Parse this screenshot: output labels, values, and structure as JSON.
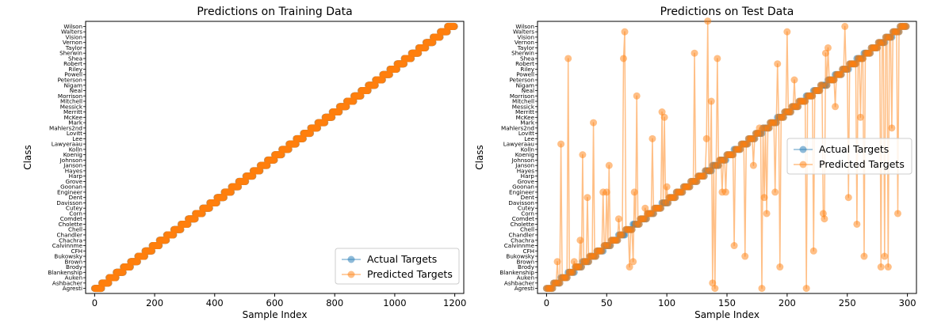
{
  "chart_data": [
    {
      "type": "line",
      "title": "Predictions on Training Data",
      "xlabel": "Sample Index",
      "ylabel": "Class",
      "xlim": [
        -30,
        1230
      ],
      "x_ticks": [
        0,
        200,
        400,
        600,
        800,
        1000,
        1200
      ],
      "grid": false,
      "legend_position": "bottom-right",
      "categories": [
        "Agresti",
        "Ashbacher",
        "Auken",
        "Blankenship",
        "Brody",
        "Brown",
        "Bukowsky",
        "CFH",
        "Calvinnme",
        "Chachra",
        "Chandler",
        "Chell",
        "Cholette",
        "Comdet",
        "Corn",
        "Cutey",
        "Davisson",
        "Dent",
        "Engineer",
        "Goonan",
        "Grove",
        "Harp",
        "Hayes",
        "Janson",
        "Johnson",
        "Koenig",
        "Kolln",
        "Lawyeraau",
        "Lee",
        "Lovitt",
        "Mahlers2nd",
        "Mark",
        "McKee",
        "Merritt",
        "Messick",
        "Mitchell",
        "Morrison",
        "Neal",
        "Nigam",
        "Peterson",
        "Powell",
        "Riley",
        "Robert",
        "Shea",
        "Sherwin",
        "Taylor",
        "Vernon",
        "Vision",
        "Walters",
        "Wilson"
      ],
      "series": [
        {
          "name": "Actual Targets",
          "color": "#1f77b4",
          "style": "staircase",
          "x_start": 0,
          "x_end": 1199,
          "samples_per_class": 24
        },
        {
          "name": "Predicted Targets",
          "color": "#ff7f0e",
          "style": "staircase",
          "x_start": 0,
          "x_end": 1199,
          "samples_per_class": 24
        }
      ]
    },
    {
      "type": "line",
      "title": "Predictions on Test Data",
      "xlabel": "Sample Index",
      "ylabel": "Class",
      "xlim": [
        -7.5,
        307.5
      ],
      "x_ticks": [
        0,
        50,
        100,
        150,
        200,
        250,
        300
      ],
      "grid": false,
      "legend_position": "center-right",
      "series": [
        {
          "name": "Actual Targets",
          "color": "#1f77b4",
          "style": "staircase",
          "x_start": 0,
          "x_end": 299,
          "samples_per_class": 6
        },
        {
          "name": "Predicted Targets",
          "color": "#ff7f0e",
          "style": "staircase_with_misclassifications",
          "x_start": 0,
          "x_end": 299,
          "samples_per_class": 6,
          "misclassified_points": [
            [
              9,
              5
            ],
            [
              12,
              27
            ],
            [
              18,
              43
            ],
            [
              23,
              5
            ],
            [
              28,
              9
            ],
            [
              30,
              25
            ],
            [
              34,
              17
            ],
            [
              39,
              31
            ],
            [
              47,
              18
            ],
            [
              50,
              18
            ],
            [
              52,
              23
            ],
            [
              60,
              13
            ],
            [
              64,
              43
            ],
            [
              65,
              48
            ],
            [
              69,
              4
            ],
            [
              72,
              5
            ],
            [
              73,
              18
            ],
            [
              75,
              36
            ],
            [
              82,
              15
            ],
            [
              84,
              14
            ],
            [
              88,
              28
            ],
            [
              96,
              33
            ],
            [
              98,
              32
            ],
            [
              100,
              19
            ],
            [
              123,
              44
            ],
            [
              133,
              28
            ],
            [
              134,
              50
            ],
            [
              137,
              35
            ],
            [
              138,
              1
            ],
            [
              140,
              0
            ],
            [
              142,
              43
            ],
            [
              146,
              18
            ],
            [
              149,
              18
            ],
            [
              156,
              8
            ],
            [
              165,
              6
            ],
            [
              172,
              23
            ],
            [
              177,
              30
            ],
            [
              179,
              0
            ],
            [
              181,
              17
            ],
            [
              183,
              14
            ],
            [
              190,
              18
            ],
            [
              192,
              42
            ],
            [
              194,
              4
            ],
            [
              200,
              48
            ],
            [
              206,
              39
            ],
            [
              216,
              0
            ],
            [
              222,
              7
            ],
            [
              230,
              14
            ],
            [
              231,
              13
            ],
            [
              232,
              44
            ],
            [
              234,
              45
            ],
            [
              240,
              34
            ],
            [
              248,
              49
            ],
            [
              251,
              17
            ],
            [
              258,
              12
            ],
            [
              261,
              32
            ],
            [
              264,
              6
            ],
            [
              278,
              4
            ],
            [
              281,
              6
            ],
            [
              284,
              4
            ],
            [
              287,
              30
            ],
            [
              292,
              14
            ]
          ]
        }
      ]
    }
  ]
}
